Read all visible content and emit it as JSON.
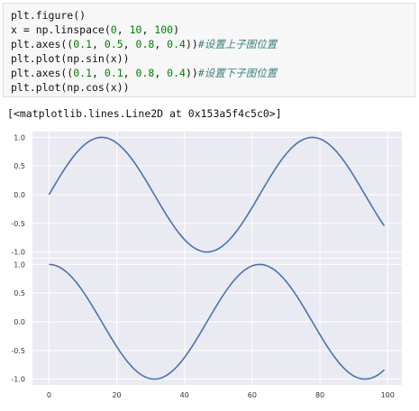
{
  "code_cell": {
    "lines": [
      [
        {
          "t": "plt.figure()",
          "c": ""
        }
      ],
      [
        {
          "t": "x = np.linspace(",
          "c": ""
        },
        {
          "t": "0",
          "c": "num"
        },
        {
          "t": ", ",
          "c": ""
        },
        {
          "t": "10",
          "c": "num"
        },
        {
          "t": ", ",
          "c": ""
        },
        {
          "t": "100",
          "c": "num"
        },
        {
          "t": ")",
          "c": ""
        }
      ],
      [
        {
          "t": "plt.axes((",
          "c": ""
        },
        {
          "t": "0.1",
          "c": "num"
        },
        {
          "t": ", ",
          "c": ""
        },
        {
          "t": "0.5",
          "c": "num"
        },
        {
          "t": ", ",
          "c": ""
        },
        {
          "t": "0.8",
          "c": "num"
        },
        {
          "t": ", ",
          "c": ""
        },
        {
          "t": "0.4",
          "c": "num"
        },
        {
          "t": "))",
          "c": ""
        },
        {
          "t": "#设置上子图位置",
          "c": "comment"
        }
      ],
      [
        {
          "t": "plt.plot(np.sin(x))",
          "c": ""
        }
      ],
      [
        {
          "t": "plt.axes((",
          "c": ""
        },
        {
          "t": "0.1",
          "c": "num"
        },
        {
          "t": ", ",
          "c": ""
        },
        {
          "t": "0.1",
          "c": "num"
        },
        {
          "t": ", ",
          "c": ""
        },
        {
          "t": "0.8",
          "c": "num"
        },
        {
          "t": ", ",
          "c": ""
        },
        {
          "t": "0.4",
          "c": "num"
        },
        {
          "t": "))",
          "c": ""
        },
        {
          "t": "#设置下子图位置",
          "c": "comment"
        }
      ],
      [
        {
          "t": "plt.plot(np.cos(x))",
          "c": ""
        }
      ]
    ]
  },
  "output_text": "[<matplotlib.lines.Line2D at 0x153a5f4c5c0>]",
  "colors": {
    "axes_bg": "#eaeaf2",
    "grid": "#ffffff",
    "line": "#4c72b0"
  },
  "chart_data": [
    {
      "type": "line",
      "title": "",
      "xlabel": "",
      "ylabel": "",
      "function": "sin",
      "x": {
        "start": 0,
        "stop": 99,
        "count": 100
      },
      "ylim": [
        -1.0,
        1.0
      ],
      "yticks": [
        "1.0",
        "0.5",
        "0.0",
        "-0.5",
        "-1.0"
      ],
      "xticks": [],
      "grid": true,
      "series": [
        {
          "formula": "sin(10*i/99)"
        }
      ]
    },
    {
      "type": "line",
      "title": "",
      "xlabel": "",
      "ylabel": "",
      "function": "cos",
      "x": {
        "start": 0,
        "stop": 99,
        "count": 100
      },
      "ylim": [
        -1.0,
        1.0
      ],
      "yticks": [
        "1.0",
        "0.5",
        "0.0",
        "-0.5",
        "-1.0"
      ],
      "xticks": [
        "0",
        "20",
        "40",
        "60",
        "80",
        "100"
      ],
      "grid": true,
      "series": [
        {
          "formula": "cos(10*i/99)"
        }
      ]
    }
  ]
}
